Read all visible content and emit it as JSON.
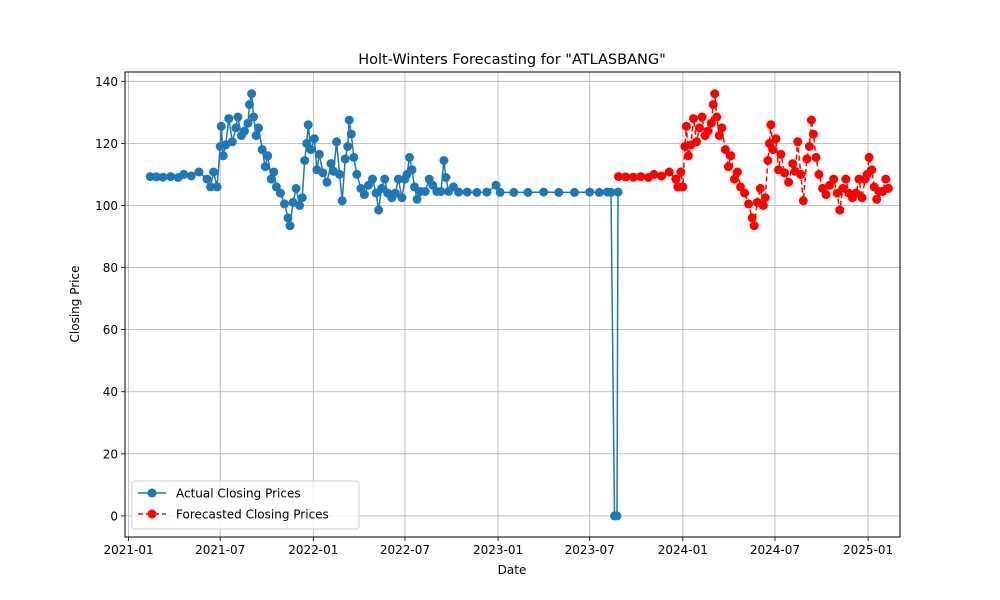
{
  "chart_data": {
    "type": "line",
    "title": "Holt-Winters Forecasting for \"ATLASBANG\"",
    "xlabel": "Date",
    "ylabel": "Closing Price",
    "xlim": [
      "2020-12-25",
      "2025-03-05"
    ],
    "ylim": [
      -6.8,
      143
    ],
    "x_ticks": [
      {
        "date": "2021-01-01",
        "label": "2021-01"
      },
      {
        "date": "2021-07-01",
        "label": "2021-07"
      },
      {
        "date": "2022-01-01",
        "label": "2022-01"
      },
      {
        "date": "2022-07-01",
        "label": "2022-07"
      },
      {
        "date": "2023-01-01",
        "label": "2023-01"
      },
      {
        "date": "2023-07-01",
        "label": "2023-07"
      },
      {
        "date": "2024-01-01",
        "label": "2024-01"
      },
      {
        "date": "2024-07-01",
        "label": "2024-07"
      },
      {
        "date": "2025-01-01",
        "label": "2025-01"
      }
    ],
    "y_ticks": [
      0,
      20,
      40,
      60,
      80,
      100,
      120,
      140
    ],
    "grid": true,
    "legend": "lower-left",
    "series": [
      {
        "name": "Actual Closing Prices",
        "color": "#1f77b4",
        "line_style": "solid",
        "marker": "circle",
        "points": [
          [
            "2021-02-13",
            109.3
          ],
          [
            "2021-02-25",
            109.2
          ],
          [
            "2021-03-10",
            109.1
          ],
          [
            "2021-03-25",
            109.3
          ],
          [
            "2021-04-09",
            109.0
          ],
          [
            "2021-04-20",
            110.0
          ],
          [
            "2021-05-05",
            109.5
          ],
          [
            "2021-05-20",
            110.8
          ],
          [
            "2021-06-05",
            108.5
          ],
          [
            "2021-06-12",
            106.0
          ],
          [
            "2021-06-18",
            110.8
          ],
          [
            "2021-06-25",
            106.0
          ],
          [
            "2021-07-01",
            119.0
          ],
          [
            "2021-07-03",
            125.5
          ],
          [
            "2021-07-07",
            116.0
          ],
          [
            "2021-07-12",
            119.5
          ],
          [
            "2021-07-18",
            128.0
          ],
          [
            "2021-07-25",
            120.5
          ],
          [
            "2021-08-01",
            125.0
          ],
          [
            "2021-08-05",
            128.5
          ],
          [
            "2021-08-12",
            122.5
          ],
          [
            "2021-08-18",
            124.0
          ],
          [
            "2021-08-25",
            126.5
          ],
          [
            "2021-08-28",
            132.5
          ],
          [
            "2021-09-01",
            136.0
          ],
          [
            "2021-09-05",
            128.5
          ],
          [
            "2021-09-10",
            122.5
          ],
          [
            "2021-09-15",
            125.0
          ],
          [
            "2021-09-22",
            118.0
          ],
          [
            "2021-09-28",
            112.5
          ],
          [
            "2021-10-03",
            116.0
          ],
          [
            "2021-10-10",
            108.5
          ],
          [
            "2021-10-15",
            110.8
          ],
          [
            "2021-10-20",
            106.0
          ],
          [
            "2021-10-28",
            104.0
          ],
          [
            "2021-11-05",
            100.5
          ],
          [
            "2021-11-12",
            96.0
          ],
          [
            "2021-11-16",
            93.5
          ],
          [
            "2021-11-22",
            101.0
          ],
          [
            "2021-11-28",
            105.5
          ],
          [
            "2021-12-05",
            100.0
          ],
          [
            "2021-12-10",
            102.5
          ],
          [
            "2021-12-15",
            114.5
          ],
          [
            "2021-12-19",
            120.0
          ],
          [
            "2021-12-22",
            126.0
          ],
          [
            "2021-12-27",
            118.0
          ],
          [
            "2022-01-03",
            121.5
          ],
          [
            "2022-01-08",
            111.5
          ],
          [
            "2022-01-13",
            116.5
          ],
          [
            "2022-01-20",
            110.5
          ],
          [
            "2022-01-28",
            107.5
          ],
          [
            "2022-02-05",
            113.5
          ],
          [
            "2022-02-10",
            111.0
          ],
          [
            "2022-02-16",
            120.5
          ],
          [
            "2022-02-22",
            110.0
          ],
          [
            "2022-02-27",
            101.5
          ],
          [
            "2022-03-05",
            115.0
          ],
          [
            "2022-03-10",
            119.0
          ],
          [
            "2022-03-13",
            127.5
          ],
          [
            "2022-03-17",
            123.0
          ],
          [
            "2022-03-22",
            115.5
          ],
          [
            "2022-03-28",
            110.0
          ],
          [
            "2022-04-05",
            105.5
          ],
          [
            "2022-04-12",
            103.5
          ],
          [
            "2022-04-20",
            106.5
          ],
          [
            "2022-04-28",
            108.5
          ],
          [
            "2022-05-05",
            104.0
          ],
          [
            "2022-05-10",
            98.5
          ],
          [
            "2022-05-16",
            105.5
          ],
          [
            "2022-05-22",
            108.5
          ],
          [
            "2022-05-28",
            104.0
          ],
          [
            "2022-06-05",
            102.5
          ],
          [
            "2022-06-12",
            104.0
          ],
          [
            "2022-06-18",
            108.5
          ],
          [
            "2022-06-25",
            102.5
          ],
          [
            "2022-07-01",
            108.5
          ],
          [
            "2022-07-05",
            110.0
          ],
          [
            "2022-07-10",
            115.5
          ],
          [
            "2022-07-15",
            111.5
          ],
          [
            "2022-07-20",
            106.0
          ],
          [
            "2022-07-25",
            102.0
          ],
          [
            "2022-08-01",
            104.5
          ],
          [
            "2022-08-10",
            104.5
          ],
          [
            "2022-08-18",
            108.5
          ],
          [
            "2022-08-25",
            106.5
          ],
          [
            "2022-09-02",
            104.5
          ],
          [
            "2022-09-10",
            104.5
          ],
          [
            "2022-09-16",
            114.5
          ],
          [
            "2022-09-20",
            109.0
          ],
          [
            "2022-09-25",
            104.5
          ],
          [
            "2022-10-05",
            106.0
          ],
          [
            "2022-10-15",
            104.3
          ],
          [
            "2022-11-01",
            104.3
          ],
          [
            "2022-11-20",
            104.2
          ],
          [
            "2022-12-10",
            104.3
          ],
          [
            "2022-12-28",
            106.5
          ],
          [
            "2023-01-05",
            104.2
          ],
          [
            "2023-02-01",
            104.2
          ],
          [
            "2023-03-01",
            104.2
          ],
          [
            "2023-04-01",
            104.3
          ],
          [
            "2023-05-01",
            104.2
          ],
          [
            "2023-06-01",
            104.2
          ],
          [
            "2023-07-01",
            104.3
          ],
          [
            "2023-07-20",
            104.2
          ],
          [
            "2023-08-05",
            104.3
          ],
          [
            "2023-08-12",
            104.2
          ],
          [
            "2023-08-19",
            0.0
          ],
          [
            "2023-08-24",
            0.0
          ],
          [
            "2023-08-26",
            104.3
          ]
        ]
      },
      {
        "name": "Forecasted Closing Prices",
        "color": "#ff0000",
        "line_style": "dashed",
        "marker": "circle",
        "points": [
          [
            "2023-08-27",
            109.3
          ],
          [
            "2023-09-10",
            109.2
          ],
          [
            "2023-09-25",
            109.1
          ],
          [
            "2023-10-10",
            109.3
          ],
          [
            "2023-10-25",
            109.0
          ],
          [
            "2023-11-05",
            110.0
          ],
          [
            "2023-11-20",
            109.5
          ],
          [
            "2023-12-05",
            110.8
          ],
          [
            "2023-12-18",
            108.5
          ],
          [
            "2023-12-22",
            106.0
          ],
          [
            "2023-12-28",
            110.8
          ],
          [
            "2024-01-01",
            106.0
          ],
          [
            "2024-01-05",
            119.0
          ],
          [
            "2024-01-08",
            125.5
          ],
          [
            "2024-01-12",
            116.0
          ],
          [
            "2024-01-17",
            119.5
          ],
          [
            "2024-01-22",
            128.0
          ],
          [
            "2024-01-28",
            120.5
          ],
          [
            "2024-02-03",
            125.0
          ],
          [
            "2024-02-08",
            128.5
          ],
          [
            "2024-02-14",
            122.5
          ],
          [
            "2024-02-20",
            124.0
          ],
          [
            "2024-02-26",
            126.5
          ],
          [
            "2024-03-01",
            132.5
          ],
          [
            "2024-03-04",
            136.0
          ],
          [
            "2024-03-08",
            128.5
          ],
          [
            "2024-03-13",
            122.5
          ],
          [
            "2024-03-18",
            125.0
          ],
          [
            "2024-03-25",
            118.0
          ],
          [
            "2024-03-31",
            112.5
          ],
          [
            "2024-04-05",
            116.0
          ],
          [
            "2024-04-12",
            108.5
          ],
          [
            "2024-04-18",
            110.8
          ],
          [
            "2024-04-24",
            106.0
          ],
          [
            "2024-05-02",
            104.0
          ],
          [
            "2024-05-10",
            100.5
          ],
          [
            "2024-05-17",
            96.0
          ],
          [
            "2024-05-21",
            93.5
          ],
          [
            "2024-05-27",
            101.0
          ],
          [
            "2024-06-02",
            105.5
          ],
          [
            "2024-06-08",
            100.0
          ],
          [
            "2024-06-12",
            102.5
          ],
          [
            "2024-06-17",
            114.5
          ],
          [
            "2024-06-20",
            120.0
          ],
          [
            "2024-06-23",
            126.0
          ],
          [
            "2024-06-27",
            118.0
          ],
          [
            "2024-07-03",
            121.5
          ],
          [
            "2024-07-08",
            111.5
          ],
          [
            "2024-07-13",
            116.5
          ],
          [
            "2024-07-20",
            110.5
          ],
          [
            "2024-07-28",
            107.5
          ],
          [
            "2024-08-05",
            113.5
          ],
          [
            "2024-08-10",
            111.0
          ],
          [
            "2024-08-15",
            120.5
          ],
          [
            "2024-08-21",
            110.0
          ],
          [
            "2024-08-26",
            101.5
          ],
          [
            "2024-09-02",
            115.0
          ],
          [
            "2024-09-07",
            119.0
          ],
          [
            "2024-09-11",
            127.5
          ],
          [
            "2024-09-15",
            123.0
          ],
          [
            "2024-09-20",
            115.5
          ],
          [
            "2024-09-26",
            110.0
          ],
          [
            "2024-10-03",
            105.5
          ],
          [
            "2024-10-10",
            103.5
          ],
          [
            "2024-10-17",
            106.5
          ],
          [
            "2024-10-25",
            108.5
          ],
          [
            "2024-11-01",
            104.0
          ],
          [
            "2024-11-06",
            98.5
          ],
          [
            "2024-11-12",
            105.5
          ],
          [
            "2024-11-18",
            108.5
          ],
          [
            "2024-11-24",
            104.0
          ],
          [
            "2024-12-01",
            102.5
          ],
          [
            "2024-12-08",
            104.0
          ],
          [
            "2024-12-14",
            108.5
          ],
          [
            "2024-12-20",
            102.5
          ],
          [
            "2024-12-26",
            108.5
          ],
          [
            "2024-12-30",
            110.0
          ],
          [
            "2025-01-03",
            115.5
          ],
          [
            "2025-01-08",
            111.5
          ],
          [
            "2025-01-13",
            106.0
          ],
          [
            "2025-01-18",
            102.0
          ],
          [
            "2025-01-24",
            104.5
          ],
          [
            "2025-01-30",
            104.5
          ],
          [
            "2025-02-05",
            108.5
          ],
          [
            "2025-02-10",
            105.5
          ]
        ]
      }
    ]
  }
}
